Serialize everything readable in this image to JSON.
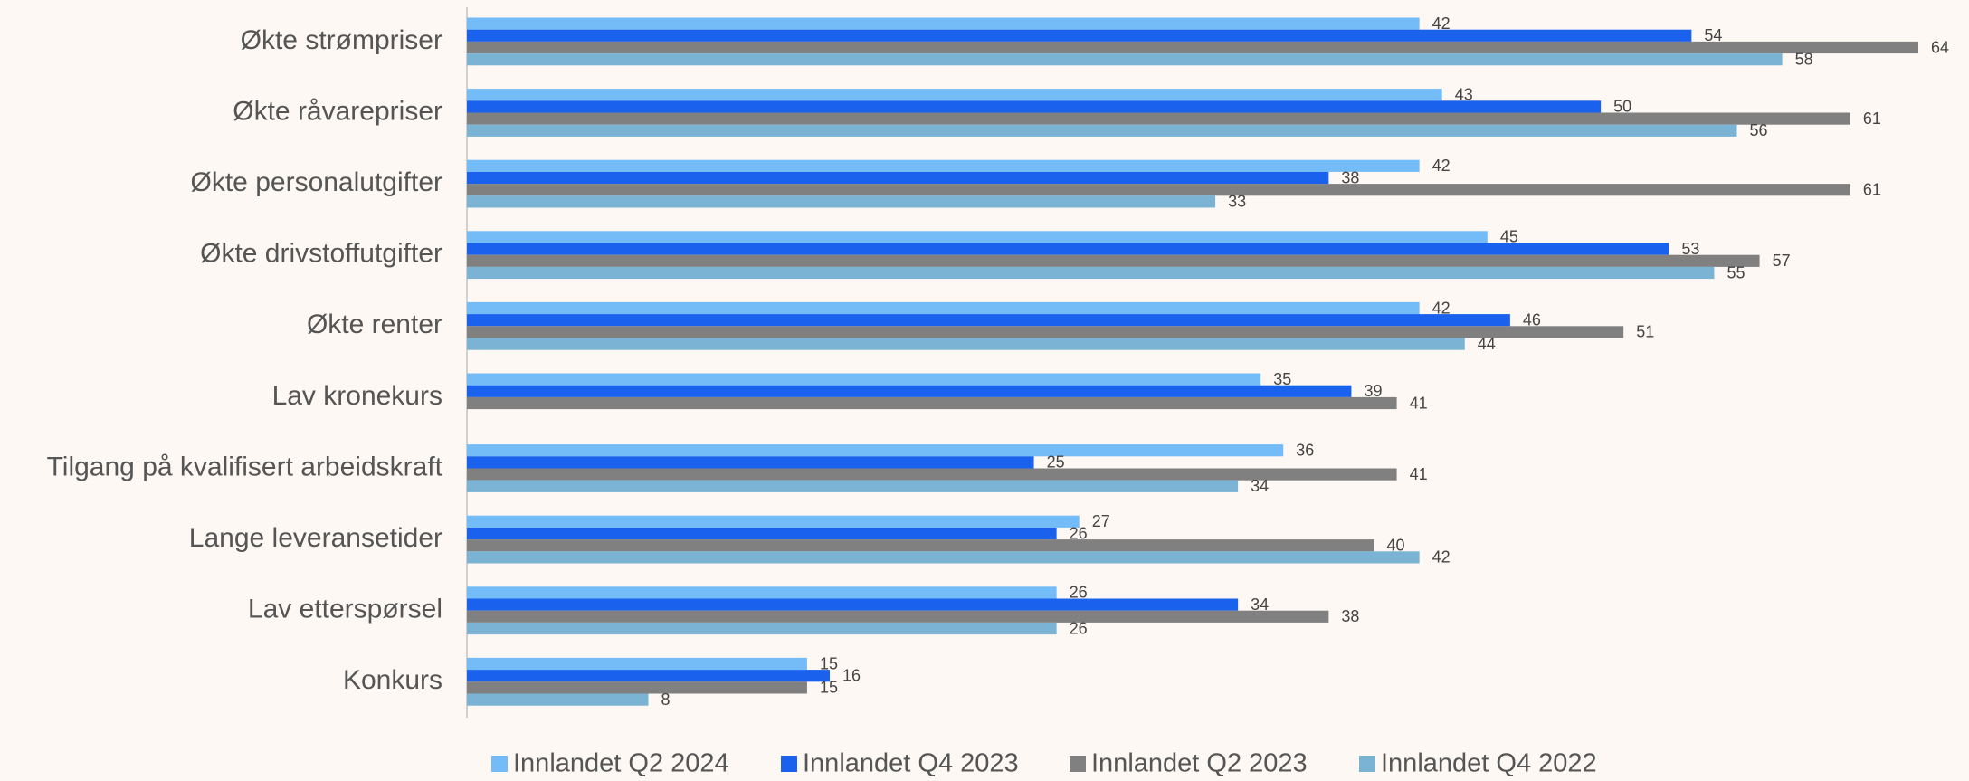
{
  "chart_data": {
    "type": "hbar",
    "categories": [
      "Økte strømpriser",
      "Økte råvarepriser",
      "Økte personalutgifter",
      "Økte drivstoffutgifter",
      "Økte renter",
      "Lav kronekurs",
      "Tilgang på kvalifisert arbeidskraft",
      "Lange leveransetider",
      "Lav etterspørsel",
      "Konkurs"
    ],
    "series": [
      {
        "name": "Innlandet Q2 2024",
        "color": "#74bcf7",
        "values": [
          42,
          43,
          42,
          45,
          42,
          35,
          36,
          27,
          26,
          15
        ]
      },
      {
        "name": "Innlandet Q4 2023",
        "color": "#1a62ee",
        "values": [
          54,
          50,
          38,
          53,
          46,
          39,
          25,
          26,
          34,
          16
        ]
      },
      {
        "name": "Innlandet Q2 2023",
        "color": "#808080",
        "values": [
          64,
          61,
          61,
          57,
          51,
          41,
          41,
          40,
          38,
          15
        ]
      },
      {
        "name": "Innlandet Q4 2022",
        "color": "#7ab3d3",
        "values": [
          58,
          56,
          33,
          55,
          44,
          null,
          34,
          42,
          26,
          8
        ]
      }
    ],
    "legend": "bottom"
  }
}
